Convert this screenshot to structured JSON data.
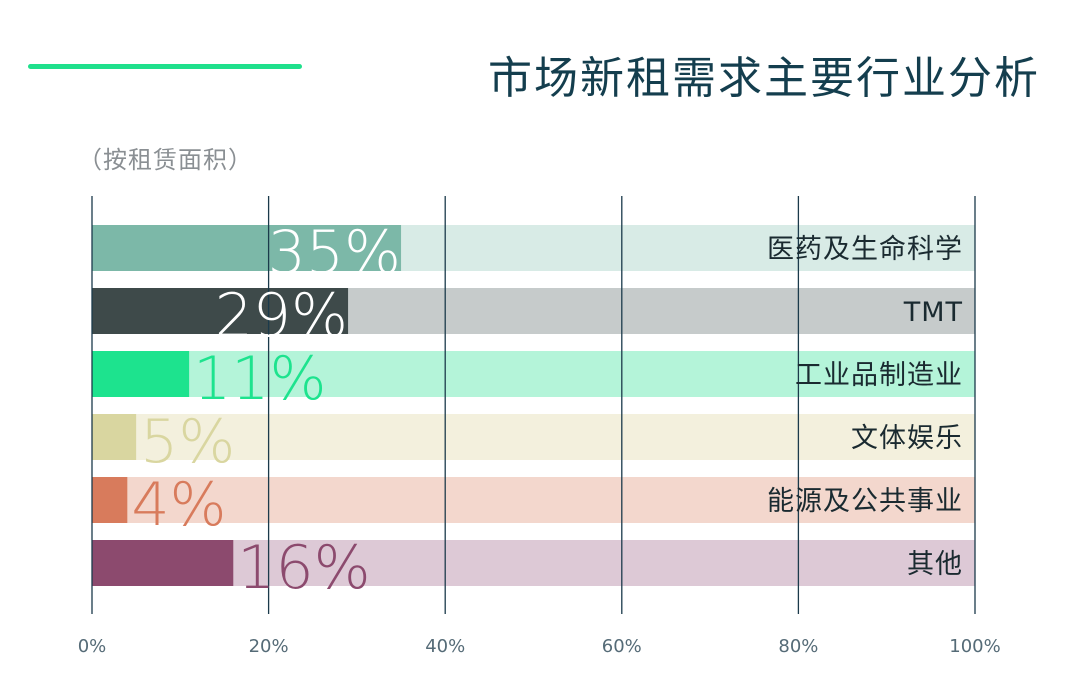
{
  "header": {
    "title": "市场新租需求主要行业分析",
    "subtitle": "（按租赁面积）"
  },
  "colors": {
    "accent_line": "#1fe08c",
    "title": "#143e4e",
    "gridline": "#1b3a4b",
    "tick_label": "#556b77"
  },
  "chart_data": {
    "type": "bar",
    "orientation": "horizontal",
    "categories": [
      "医药及生命科学",
      "TMT",
      "工业品制造业",
      "文体娱乐",
      "能源及公共事业",
      "其他"
    ],
    "values": [
      35,
      29,
      11,
      5,
      4,
      16
    ],
    "value_labels": [
      "35%",
      "29%",
      "11%",
      "5%",
      "4%",
      "16%"
    ],
    "xlim": [
      0,
      100
    ],
    "xticks": [
      "0%",
      "20%",
      "40%",
      "60%",
      "80%",
      "100%"
    ],
    "grid": true,
    "bar_colors": [
      "#7cb8a8",
      "#3e4a4a",
      "#1de38e",
      "#d9d6a0",
      "#d87b5c",
      "#8c4a6e"
    ],
    "track_colors": [
      "#d8ebe6",
      "#c6cbcb",
      "#b4f4d9",
      "#f3f0dd",
      "#f3d7cd",
      "#ddc9d6"
    ],
    "label_colors": [
      "#ffffff",
      "#ffffff",
      "#1de38e",
      "#d9d6a0",
      "#d87b5c",
      "#8c4a6e"
    ]
  }
}
